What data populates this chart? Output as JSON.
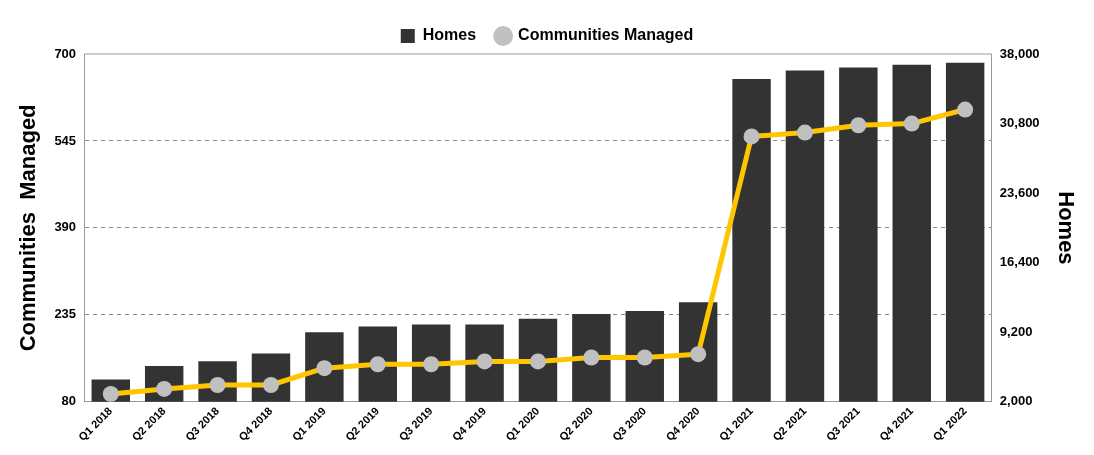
{
  "chart_data": {
    "type": "bar",
    "categories": [
      "Q1 2018",
      "Q2 2018",
      "Q3 2018",
      "Q4 2018",
      "Q1 2019",
      "Q2 2019",
      "Q3 2019",
      "Q4 2019",
      "Q1 2020",
      "Q2 2020",
      "Q3 2020",
      "Q4 2020",
      "Q1 2021",
      "Q2 2021",
      "Q3 2021",
      "Q4 2021",
      "Q1 2022"
    ],
    "series": [
      {
        "name": "Homes",
        "axis": "y2",
        "color": "#333333",
        "values": [
          4300,
          5700,
          6200,
          7000,
          9200,
          9800,
          10000,
          10000,
          10600,
          11100,
          11400,
          12300,
          35400,
          36300,
          36600,
          36900,
          37100
        ]
      },
      {
        "name": "Communities Managed",
        "type": "line",
        "axis": "y",
        "color": "#ffc600",
        "marker": "circle",
        "values": [
          94,
          103,
          110,
          110,
          140,
          147,
          147,
          152,
          152,
          159,
          159,
          165,
          553,
          560,
          573,
          576,
          601
        ]
      }
    ],
    "ylabel": "Communities  Managed",
    "y2label": "Homes",
    "ylim": [
      80,
      700
    ],
    "yticks": [
      80,
      235,
      390,
      545,
      700
    ],
    "y2lim": [
      2000,
      38000
    ],
    "y2ticks": [
      {
        "value": 2000,
        "label": "2,000"
      },
      {
        "value": 9200,
        "label": "9,200"
      },
      {
        "value": 16400,
        "label": "16,400"
      },
      {
        "value": 23600,
        "label": "23,600"
      },
      {
        "value": 30800,
        "label": "30,800"
      },
      {
        "value": 38000,
        "label": "38,000"
      }
    ],
    "grid": "y",
    "legend": "top"
  }
}
